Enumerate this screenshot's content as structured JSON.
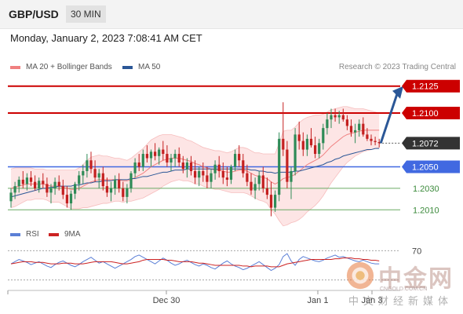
{
  "header": {
    "symbol": "GBP/USD",
    "timeframe": "30 MIN"
  },
  "datetime": "Monday, January 2, 2023 7:08:41 AM CET",
  "legend": [
    {
      "label": "MA 20 + Bollinger Bands",
      "color": "#f08080"
    },
    {
      "label": "MA 50",
      "color": "#2b5797"
    }
  ],
  "credit": "Research © 2023 Trading Central",
  "rsi_legend": [
    {
      "label": "RSI",
      "color": "#5b7fd6"
    },
    {
      "label": "9MA",
      "color": "#cc2222"
    }
  ],
  "watermark": {
    "cn": "中金网",
    "url": "CNGOLD.COM.CN",
    "sub": "中文财经新媒体"
  },
  "colors": {
    "up": "#2e8b57",
    "down": "#c42020",
    "resistance": "#cc0000",
    "pivot": "#4169e1",
    "support": "#6aaa64",
    "current": "#333333"
  },
  "chart_data": [
    {
      "type": "candlestick",
      "title": "GBP/USD",
      "ylim": [
        1.2,
        1.2135
      ],
      "x_ticks": [
        "Dec 30",
        "Jan 1",
        "Jan 3"
      ],
      "current_price": 1.2072,
      "levels": [
        {
          "value": 1.2125,
          "label": "1.2125",
          "kind": "resistance"
        },
        {
          "value": 1.21,
          "label": "1.2100",
          "kind": "resistance"
        },
        {
          "value": 1.2072,
          "label": "1.2072",
          "kind": "current"
        },
        {
          "value": 1.205,
          "label": "1.2050",
          "kind": "pivot"
        },
        {
          "value": 1.203,
          "label": "1.2030",
          "kind": "support"
        },
        {
          "value": 1.201,
          "label": "1.2010",
          "kind": "support"
        }
      ],
      "forecast_target": 1.2125,
      "candles": [
        [
          1.2018,
          1.203,
          1.2012,
          1.2026
        ],
        [
          1.2026,
          1.2036,
          1.202,
          1.2032
        ],
        [
          1.2032,
          1.2041,
          1.2026,
          1.2038
        ],
        [
          1.2038,
          1.2046,
          1.203,
          1.2034
        ],
        [
          1.2034,
          1.2044,
          1.2028,
          1.204
        ],
        [
          1.204,
          1.2046,
          1.2032,
          1.2036
        ],
        [
          1.2036,
          1.2042,
          1.2028,
          1.203
        ],
        [
          1.203,
          1.204,
          1.2026,
          1.2037
        ],
        [
          1.2037,
          1.2044,
          1.203,
          1.2034
        ],
        [
          1.2034,
          1.204,
          1.2022,
          1.2026
        ],
        [
          1.2026,
          1.2034,
          1.2016,
          1.203
        ],
        [
          1.203,
          1.204,
          1.2024,
          1.2036
        ],
        [
          1.2036,
          1.2042,
          1.2028,
          1.2032
        ],
        [
          1.2032,
          1.2038,
          1.202,
          1.2024
        ],
        [
          1.2024,
          1.2032,
          1.2012,
          1.2016
        ],
        [
          1.2016,
          1.2028,
          1.201,
          1.2025
        ],
        [
          1.2025,
          1.2036,
          1.202,
          1.2034
        ],
        [
          1.2034,
          1.2046,
          1.2028,
          1.2042
        ],
        [
          1.2042,
          1.2052,
          1.2034,
          1.2046
        ],
        [
          1.2046,
          1.2062,
          1.204,
          1.2056
        ],
        [
          1.2056,
          1.2064,
          1.2044,
          1.2048
        ],
        [
          1.2048,
          1.2056,
          1.2036,
          1.204
        ],
        [
          1.204,
          1.2048,
          1.203,
          1.2044
        ],
        [
          1.2044,
          1.205,
          1.2028,
          1.2032
        ],
        [
          1.2032,
          1.204,
          1.2022,
          1.2026
        ],
        [
          1.2026,
          1.2036,
          1.2018,
          1.203
        ],
        [
          1.203,
          1.2042,
          1.2024,
          1.2038
        ],
        [
          1.2038,
          1.2044,
          1.2026,
          1.203
        ],
        [
          1.203,
          1.2036,
          1.2018,
          1.2022
        ],
        [
          1.2022,
          1.2034,
          1.2016,
          1.203
        ],
        [
          1.203,
          1.2046,
          1.2026,
          1.2044
        ],
        [
          1.2044,
          1.2058,
          1.204,
          1.2054
        ],
        [
          1.2054,
          1.2062,
          1.2046,
          1.205
        ],
        [
          1.205,
          1.2066,
          1.2046,
          1.2062
        ],
        [
          1.2062,
          1.207,
          1.2054,
          1.2058
        ],
        [
          1.2058,
          1.2066,
          1.205,
          1.2064
        ],
        [
          1.2064,
          1.2072,
          1.2056,
          1.206
        ],
        [
          1.206,
          1.2068,
          1.2052,
          1.2066
        ],
        [
          1.2066,
          1.2074,
          1.2056,
          1.2062
        ],
        [
          1.2062,
          1.207,
          1.205,
          1.2054
        ],
        [
          1.2054,
          1.2062,
          1.2046,
          1.2058
        ],
        [
          1.2058,
          1.2066,
          1.205,
          1.2062
        ],
        [
          1.2062,
          1.2068,
          1.205,
          1.2054
        ],
        [
          1.2054,
          1.206,
          1.2044,
          1.2048
        ],
        [
          1.2048,
          1.2058,
          1.204,
          1.2054
        ],
        [
          1.2054,
          1.206,
          1.2042,
          1.2046
        ],
        [
          1.2046,
          1.2056,
          1.2034,
          1.204
        ],
        [
          1.204,
          1.205,
          1.2032,
          1.2046
        ],
        [
          1.2046,
          1.2054,
          1.2036,
          1.2042
        ],
        [
          1.2042,
          1.205,
          1.203,
          1.2036
        ],
        [
          1.2036,
          1.2048,
          1.203,
          1.2044
        ],
        [
          1.2044,
          1.2056,
          1.2038,
          1.2052
        ],
        [
          1.2052,
          1.206,
          1.204,
          1.2046
        ],
        [
          1.2046,
          1.2054,
          1.2034,
          1.204
        ],
        [
          1.204,
          1.205,
          1.2032,
          1.2038
        ],
        [
          1.2038,
          1.2052,
          1.2034,
          1.205
        ],
        [
          1.205,
          1.2066,
          1.2046,
          1.2062
        ],
        [
          1.2062,
          1.207,
          1.205,
          1.2056
        ],
        [
          1.2056,
          1.2062,
          1.204,
          1.2044
        ],
        [
          1.2044,
          1.2052,
          1.2032,
          1.2036
        ],
        [
          1.2036,
          1.2044,
          1.2024,
          1.2028
        ],
        [
          1.2028,
          1.204,
          1.202,
          1.2034
        ],
        [
          1.2034,
          1.2046,
          1.2028,
          1.2042
        ],
        [
          1.2042,
          1.205,
          1.2026,
          1.203
        ],
        [
          1.203,
          1.204,
          1.202,
          1.2024
        ],
        [
          1.2024,
          1.2036,
          1.2004,
          1.2012
        ],
        [
          1.2012,
          1.2028,
          1.2008,
          1.2024
        ],
        [
          1.2024,
          1.2082,
          1.2018,
          1.2076
        ],
        [
          1.2076,
          1.211,
          1.206,
          1.2066
        ],
        [
          1.2066,
          1.2074,
          1.203,
          1.2036
        ],
        [
          1.2036,
          1.205,
          1.202,
          1.2046
        ],
        [
          1.2046,
          1.2086,
          1.2042,
          1.208
        ],
        [
          1.208,
          1.2092,
          1.2066,
          1.2074
        ],
        [
          1.2074,
          1.2082,
          1.206,
          1.2066
        ],
        [
          1.2066,
          1.208,
          1.206,
          1.2076
        ],
        [
          1.2076,
          1.2086,
          1.2068,
          1.207
        ],
        [
          1.207,
          1.2078,
          1.2058,
          1.2062
        ],
        [
          1.2062,
          1.2076,
          1.2058,
          1.2072
        ],
        [
          1.2072,
          1.209,
          1.2066,
          1.2086
        ],
        [
          1.2086,
          1.21,
          1.208,
          1.2094
        ],
        [
          1.2094,
          1.2104,
          1.2086,
          1.2098
        ],
        [
          1.2098,
          1.2104,
          1.2092,
          1.2096
        ],
        [
          1.2096,
          1.2102,
          1.209,
          1.2098
        ],
        [
          1.2098,
          1.2104,
          1.2092,
          1.2094
        ],
        [
          1.2094,
          1.2098,
          1.2084,
          1.2088
        ],
        [
          1.2088,
          1.2094,
          1.2078,
          1.2082
        ],
        [
          1.2082,
          1.209,
          1.2072,
          1.2084
        ],
        [
          1.2084,
          1.2094,
          1.2078,
          1.209
        ],
        [
          1.209,
          1.2096,
          1.2078,
          1.208
        ],
        [
          1.208,
          1.2086,
          1.2074,
          1.2076
        ],
        [
          1.2076,
          1.208,
          1.207,
          1.2074
        ],
        [
          1.2074,
          1.2078,
          1.207,
          1.2073
        ],
        [
          1.2073,
          1.2076,
          1.2068,
          1.2072
        ]
      ],
      "ma20": [
        1.203,
        1.2031,
        1.2032,
        1.2033,
        1.2034,
        1.2034,
        1.2034,
        1.2034,
        1.2034,
        1.2033,
        1.2032,
        1.2032,
        1.2032,
        1.2031,
        1.203,
        1.2029,
        1.2029,
        1.203,
        1.2032,
        1.2034,
        1.2036,
        1.2037,
        1.2038,
        1.2038,
        1.2038,
        1.2038,
        1.2038,
        1.2038,
        1.2037,
        1.2037,
        1.2038,
        1.204,
        1.2042,
        1.2044,
        1.2047,
        1.205,
        1.2052,
        1.2054,
        1.2056,
        1.2057,
        1.2058,
        1.2058,
        1.2058,
        1.2057,
        1.2056,
        1.2055,
        1.2053,
        1.2052,
        1.205,
        1.2049,
        1.2048,
        1.2047,
        1.2047,
        1.2046,
        1.2045,
        1.2045,
        1.2046,
        1.2047,
        1.2047,
        1.2046,
        1.2044,
        1.2042,
        1.2041,
        1.204,
        1.2039,
        1.2036,
        1.2034,
        1.2036,
        1.2039,
        1.204,
        1.2041,
        1.2043,
        1.2046,
        1.2049,
        1.2052,
        1.2054,
        1.2056,
        1.2058,
        1.2061,
        1.2065,
        1.2069,
        1.2072,
        1.2075,
        1.2078,
        1.208,
        1.2081,
        1.2082,
        1.2083,
        1.2084,
        1.2084,
        1.2084,
        1.2084,
        1.2084
      ],
      "ma50": [
        1.2022,
        1.2023,
        1.2024,
        1.2025,
        1.2026,
        1.2027,
        1.2028,
        1.2029,
        1.203,
        1.203,
        1.2031,
        1.2031,
        1.2032,
        1.2032,
        1.2032,
        1.2032,
        1.2033,
        1.2033,
        1.2034,
        1.2035,
        1.2035,
        1.2036,
        1.2036,
        1.2037,
        1.2037,
        1.2037,
        1.2038,
        1.2038,
        1.2038,
        1.2038,
        1.2039,
        1.2039,
        1.204,
        1.2041,
        1.2041,
        1.2042,
        1.2043,
        1.2044,
        1.2045,
        1.2045,
        1.2046,
        1.2047,
        1.2047,
        1.2047,
        1.2048,
        1.2048,
        1.2048,
        1.2048,
        1.2048,
        1.2048,
        1.2048,
        1.2048,
        1.2048,
        1.2048,
        1.2048,
        1.2048,
        1.2048,
        1.2048,
        1.2048,
        1.2048,
        1.2047,
        1.2047,
        1.2046,
        1.2046,
        1.2045,
        1.2045,
        1.2044,
        1.2045,
        1.2045,
        1.2045,
        1.2045,
        1.2046,
        1.2046,
        1.2047,
        1.2048,
        1.2049,
        1.205,
        1.2051,
        1.2052,
        1.2054,
        1.2055,
        1.2057,
        1.2058,
        1.206,
        1.2061,
        1.2062,
        1.2063,
        1.2064,
        1.2065,
        1.2066,
        1.2066,
        1.2067,
        1.2067
      ],
      "bb_width": [
        0.0018,
        0.0018,
        0.0017,
        0.0016,
        0.0015,
        0.0015,
        0.0014,
        0.0014,
        0.0014,
        0.0014,
        0.0015,
        0.0015,
        0.0015,
        0.0016,
        0.0017,
        0.0018,
        0.0018,
        0.0019,
        0.002,
        0.0022,
        0.0023,
        0.0023,
        0.0023,
        0.0022,
        0.0022,
        0.0021,
        0.002,
        0.002,
        0.002,
        0.0019,
        0.002,
        0.0021,
        0.0022,
        0.0023,
        0.0024,
        0.0025,
        0.0025,
        0.0025,
        0.0024,
        0.0023,
        0.0022,
        0.0021,
        0.002,
        0.002,
        0.0019,
        0.0019,
        0.0019,
        0.0018,
        0.0018,
        0.0018,
        0.0018,
        0.0018,
        0.0018,
        0.0018,
        0.0018,
        0.0019,
        0.002,
        0.0021,
        0.0021,
        0.0021,
        0.0021,
        0.0021,
        0.0022,
        0.0022,
        0.0023,
        0.0026,
        0.0028,
        0.0036,
        0.0044,
        0.0044,
        0.0043,
        0.0044,
        0.0045,
        0.0045,
        0.0044,
        0.0043,
        0.0042,
        0.004,
        0.0038,
        0.0036,
        0.0034,
        0.0032,
        0.003,
        0.0028,
        0.0026,
        0.0024,
        0.0022,
        0.0021,
        0.002,
        0.0019,
        0.0018,
        0.0017,
        0.0016
      ]
    },
    {
      "type": "line",
      "title": "RSI",
      "ylim": [
        20,
        80
      ],
      "y_ticks": [
        70
      ],
      "series": [
        {
          "name": "RSI",
          "values": [
            52,
            55,
            58,
            56,
            54,
            51,
            53,
            55,
            52,
            49,
            47,
            51,
            54,
            56,
            53,
            50,
            48,
            51,
            55,
            58,
            61,
            57,
            53,
            55,
            52,
            49,
            46,
            49,
            52,
            55,
            58,
            62,
            64,
            61,
            58,
            55,
            52,
            56,
            60,
            57,
            53,
            50,
            52,
            55,
            57,
            54,
            51,
            49,
            52,
            50,
            47,
            45,
            49,
            53,
            56,
            52,
            49,
            47,
            44,
            46,
            49,
            52,
            55,
            51,
            47,
            43,
            46,
            51,
            62,
            66,
            56,
            50,
            58,
            62,
            60,
            58,
            56,
            55,
            57,
            60,
            62,
            64,
            61,
            62,
            60,
            58,
            56,
            55,
            57,
            55,
            53,
            52,
            52
          ]
        },
        {
          "name": "9MA",
          "values": [
            52,
            53,
            54,
            55,
            55,
            55,
            54,
            54,
            54,
            53,
            52,
            52,
            52,
            53,
            53,
            53,
            52,
            52,
            52,
            53,
            54,
            55,
            55,
            55,
            55,
            55,
            54,
            53,
            52,
            52,
            53,
            54,
            55,
            57,
            58,
            58,
            58,
            58,
            58,
            57,
            57,
            56,
            55,
            55,
            55,
            55,
            54,
            53,
            53,
            52,
            51,
            50,
            50,
            50,
            50,
            50,
            50,
            50,
            49,
            49,
            48,
            49,
            49,
            49,
            49,
            48,
            48,
            48,
            50,
            52,
            53,
            54,
            55,
            56,
            57,
            58,
            58,
            58,
            58,
            58,
            58,
            59,
            59,
            60,
            60,
            60,
            59,
            59,
            58,
            58,
            57,
            57,
            56
          ]
        }
      ]
    }
  ]
}
